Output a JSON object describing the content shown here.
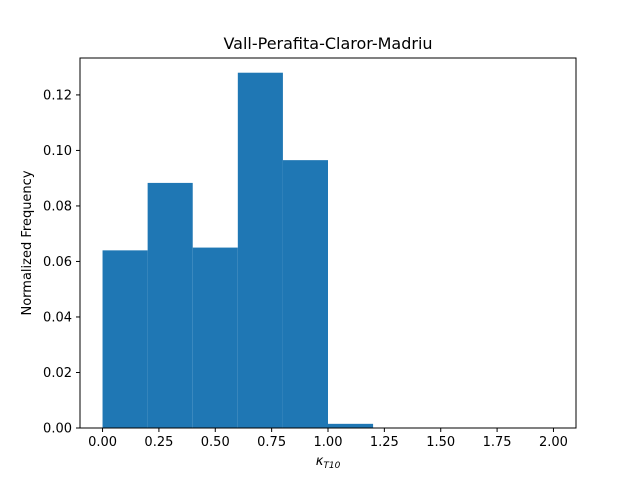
{
  "chart_data": {
    "type": "bar",
    "title": "Vall-Perafita-Claror-Madriu",
    "xlabel_main": "κ",
    "xlabel_sub": "T10",
    "ylabel": "Normalized Frequency",
    "xlim": [
      -0.1,
      2.1
    ],
    "ylim": [
      0,
      0.1333
    ],
    "bins": [
      {
        "x0": 0.0,
        "x1": 0.2,
        "value": 0.064
      },
      {
        "x0": 0.2,
        "x1": 0.4,
        "value": 0.0883
      },
      {
        "x0": 0.4,
        "x1": 0.6,
        "value": 0.065
      },
      {
        "x0": 0.6,
        "x1": 0.8,
        "value": 0.128
      },
      {
        "x0": 0.8,
        "x1": 1.0,
        "value": 0.0965
      },
      {
        "x0": 1.0,
        "x1": 1.2,
        "value": 0.0015
      },
      {
        "x0": 1.2,
        "x1": 1.4,
        "value": 0
      },
      {
        "x0": 1.4,
        "x1": 1.6,
        "value": 0
      },
      {
        "x0": 1.6,
        "x1": 1.8,
        "value": 0
      },
      {
        "x0": 1.8,
        "x1": 2.0,
        "value": 0
      }
    ],
    "xticks": [
      0.0,
      0.25,
      0.5,
      0.75,
      1.0,
      1.25,
      1.5,
      1.75,
      2.0
    ],
    "xtick_labels": [
      "0.00",
      "0.25",
      "0.50",
      "0.75",
      "1.00",
      "1.25",
      "1.50",
      "1.75",
      "2.00"
    ],
    "yticks": [
      0.0,
      0.02,
      0.04,
      0.06,
      0.08,
      0.1,
      0.12
    ],
    "ytick_labels": [
      "0.00",
      "0.02",
      "0.04",
      "0.06",
      "0.08",
      "0.10",
      "0.12"
    ],
    "bar_color": "#1f77b4",
    "grid": false,
    "legend": "none"
  }
}
